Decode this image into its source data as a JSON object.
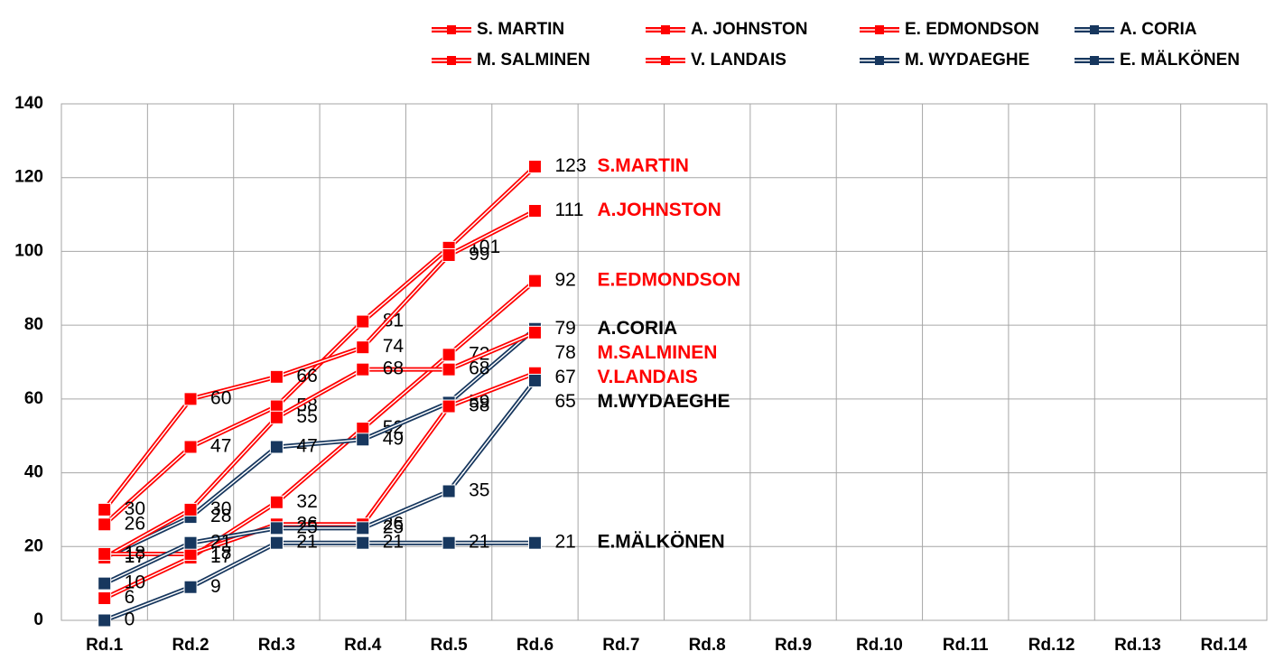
{
  "chart_data": {
    "type": "line",
    "categories": [
      "Rd.1",
      "Rd.2",
      "Rd.3",
      "Rd.4",
      "Rd.5",
      "Rd.6",
      "Rd.7",
      "Rd.8",
      "Rd.9",
      "Rd.10",
      "Rd.11",
      "Rd.12",
      "Rd.13",
      "Rd.14"
    ],
    "series": [
      {
        "name": "S. MARTIN",
        "end_label": "S.MARTIN",
        "color": "#ff0000",
        "values": [
          26,
          47,
          58,
          81,
          101,
          123,
          null,
          null,
          null,
          null,
          null,
          null,
          null,
          null
        ]
      },
      {
        "name": "A. JOHNSTON",
        "end_label": "A.JOHNSTON",
        "color": "#ff0000",
        "values": [
          30,
          60,
          66,
          74,
          99,
          111,
          null,
          null,
          null,
          null,
          null,
          null,
          null,
          null
        ]
      },
      {
        "name": "E. EDMONDSON",
        "end_label": "E.EDMONDSON",
        "color": "#ff0000",
        "values": [
          6,
          17,
          32,
          52,
          72,
          92,
          null,
          null,
          null,
          null,
          null,
          null,
          null,
          null
        ]
      },
      {
        "name": "A. CORIA",
        "end_label": "A.CORIA",
        "color": "#17375e",
        "values": [
          17,
          28,
          47,
          49,
          59,
          79,
          null,
          null,
          null,
          null,
          null,
          null,
          null,
          null
        ]
      },
      {
        "name": "M. SALMINEN",
        "end_label": "M.SALMINEN",
        "color": "#ff0000",
        "values": [
          17,
          30,
          55,
          68,
          68,
          78,
          null,
          null,
          null,
          null,
          null,
          null,
          null,
          null
        ]
      },
      {
        "name": "V. LANDAIS",
        "end_label": "V.LANDAIS",
        "color": "#ff0000",
        "values": [
          18,
          18,
          26,
          26,
          58,
          67,
          null,
          null,
          null,
          null,
          null,
          null,
          null,
          null
        ]
      },
      {
        "name": "M. WYDAEGHE",
        "end_label": "M.WYDAEGHE",
        "color": "#17375e",
        "values": [
          10,
          21,
          25,
          25,
          35,
          65,
          null,
          null,
          null,
          null,
          null,
          null,
          null,
          null
        ]
      },
      {
        "name": "E. MÄLKÖNEN",
        "end_label": "E.MÄLKÖNEN",
        "color": "#17375e",
        "values": [
          0,
          9,
          21,
          21,
          21,
          21,
          null,
          null,
          null,
          null,
          null,
          null,
          null,
          null
        ]
      }
    ],
    "ylim": [
      0,
      140
    ],
    "yticks": [
      0,
      20,
      40,
      60,
      80,
      100,
      120,
      140
    ],
    "grid": true,
    "legend": "top"
  }
}
